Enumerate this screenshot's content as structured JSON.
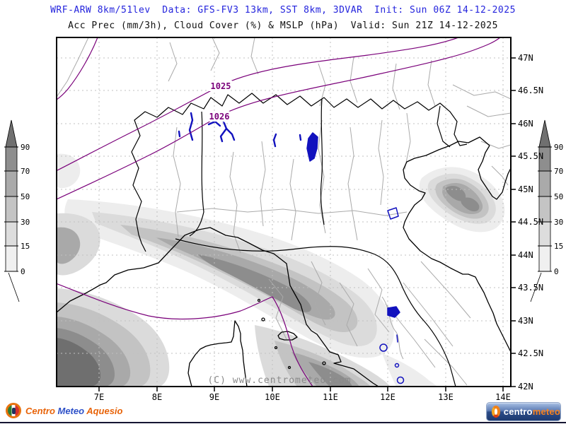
{
  "header": {
    "model_line": "WRF-ARW 8km/51lev  Data: GFS-FV3 13km, SST 8km, 3DVAR  Init: Sun 06Z 14-12-2025",
    "valid_line": "Acc Prec (mm/3h), Cloud Cover (%) & MSLP (hPa)  Valid: Sun 21Z 14-12-2025"
  },
  "map": {
    "watermark": "(C) www.centrometeo.com",
    "x_tick_labels": [
      "7E",
      "8E",
      "9E",
      "10E",
      "11E",
      "12E",
      "13E",
      "14E"
    ],
    "y_tick_labels": [
      "47N",
      "46.5N",
      "46N",
      "45.5N",
      "45N",
      "44.5N",
      "44N",
      "43.5N",
      "43N",
      "42.5N",
      "42N"
    ],
    "isobar_labels": [
      {
        "text": "1025"
      },
      {
        "text": "1026"
      }
    ],
    "isobar_color": "#7a007a",
    "lake_color": "#1212be",
    "coast_color": "#000000",
    "province_color": "#aaaaaa"
  },
  "colorbar": {
    "tick_labels": [
      "90",
      "70",
      "50",
      "30",
      "15",
      "0"
    ],
    "segment_colors_top_to_bottom": [
      "#707070",
      "#8e8e8e",
      "#aaaaaa",
      "#c4c4c4",
      "#dddddd",
      "#f0f0f0"
    ]
  },
  "footer": {
    "left_logo": {
      "word1": "Centro ",
      "word2": "Meteo ",
      "word3": "Aquesio"
    },
    "right_logo": {
      "word1": "centro",
      "word2": "meteo"
    }
  },
  "chart_data": {
    "type": "weather-map",
    "model": "WRF-ARW 8km/51lev",
    "data_source": "GFS-FV3 13km, SST 8km, 3DVAR",
    "init_time": "Sun 06Z 14-12-2025",
    "valid_time": "Sun 21Z 14-12-2025",
    "fields": "Acc Prec (mm/3h), Cloud Cover (%) & MSLP (hPa)",
    "x_axis_ticks_lon": [
      "7E",
      "8E",
      "9E",
      "10E",
      "11E",
      "12E",
      "13E",
      "14E"
    ],
    "y_axis_ticks_lat": [
      "47N",
      "46.5N",
      "46N",
      "45.5N",
      "45N",
      "44.5N",
      "44N",
      "43.5N",
      "43N",
      "42.5N",
      "42N"
    ],
    "shade_scale_percent": [
      0,
      15,
      30,
      50,
      70,
      90
    ],
    "isobars_hpa_labeled": [
      1025,
      1026
    ],
    "watermark": "(C) www.centrometeo.com"
  }
}
